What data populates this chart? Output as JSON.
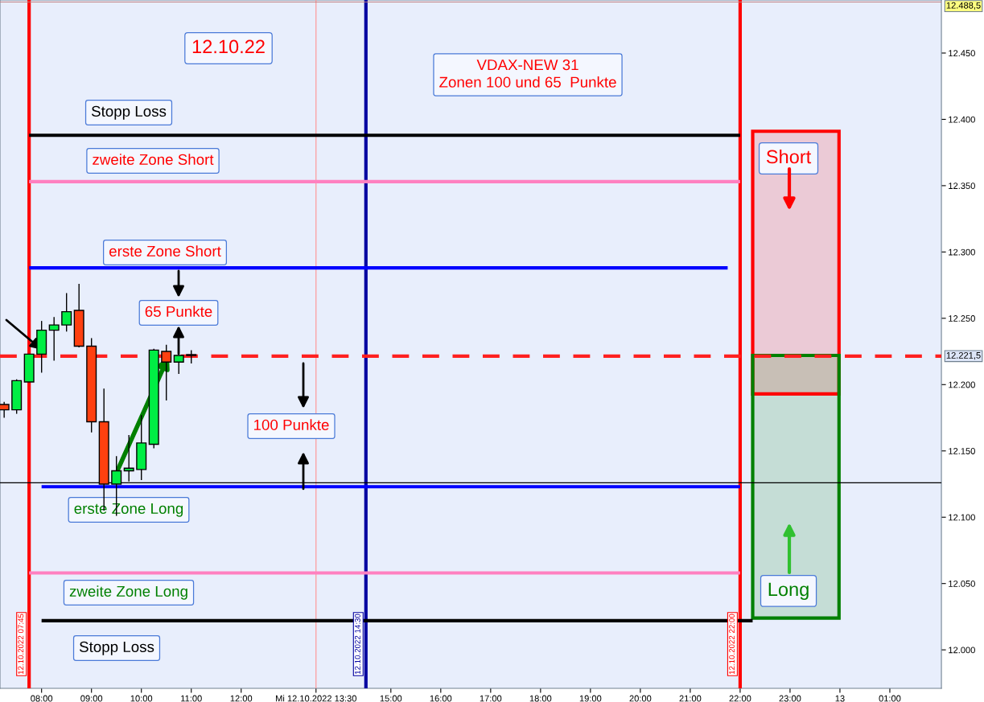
{
  "chart_data": {
    "type": "candlestick",
    "x": [
      "2022-10-12T07:15",
      "2022-10-12T07:30",
      "2022-10-12T07:45",
      "2022-10-12T08:00",
      "2022-10-12T08:15",
      "2022-10-12T08:30",
      "2022-10-12T08:45",
      "2022-10-12T09:00",
      "2022-10-12T09:15",
      "2022-10-12T09:30",
      "2022-10-12T09:45",
      "2022-10-12T10:00",
      "2022-10-12T10:15",
      "2022-10-12T10:30",
      "2022-10-12T10:45",
      "2022-10-12T11:00"
    ],
    "ohlc": [
      [
        12185,
        12187,
        12175,
        12181
      ],
      [
        12181,
        12204,
        12178,
        12203
      ],
      [
        12202,
        12223,
        12202,
        12223
      ],
      [
        12223,
        12248,
        12209,
        12241
      ],
      [
        12241,
        12251,
        12218,
        12245
      ],
      [
        12245,
        12269,
        12240,
        12255
      ],
      [
        12256,
        12276,
        12228,
        12229
      ],
      [
        12229,
        12235,
        12164,
        12172
      ],
      [
        12172,
        12197,
        12105,
        12125
      ],
      [
        12125,
        12146,
        12101,
        12135
      ],
      [
        12135,
        12162,
        12127,
        12137
      ],
      [
        12136,
        12177,
        12128,
        12156
      ],
      [
        12155,
        12227,
        12152,
        12226
      ],
      [
        12225,
        12230,
        12188,
        12217
      ],
      [
        12217,
        12222,
        12208,
        12222
      ],
      [
        12222,
        12226,
        12216,
        12222
      ]
    ],
    "colors": [
      "#ff4010",
      "#00ee44",
      "#00ee44",
      "#00ee44",
      "#00ee44",
      "#00ee44",
      "#ff4010",
      "#ff4010",
      "#ff4010",
      "#00ee44",
      "#00ee44",
      "#00ee44",
      "#00ee44",
      "#ff4010",
      "#00ee44",
      "#00ee44"
    ],
    "series": [
      {
        "type": "line",
        "color": "#000000",
        "x": [
          "2022-10-12T07:45",
          "2022-10-12T22:00"
        ],
        "values": [
          12388,
          12388
        ]
      },
      {
        "type": "line",
        "color": "#ff80c0",
        "x": [
          "2022-10-12T07:45",
          "2022-10-12T22:00"
        ],
        "values": [
          12353,
          12353
        ]
      },
      {
        "type": "line",
        "color": "#0000ff",
        "x": [
          "2022-10-12T07:45",
          "2022-10-12T21:45"
        ],
        "values": [
          12288,
          12288
        ]
      },
      {
        "type": "line",
        "color": "#0000ff",
        "x": [
          "2022-10-12T08:00",
          "2022-10-12T22:00"
        ],
        "values": [
          12123,
          12123
        ]
      },
      {
        "type": "line",
        "color": "#ff80c0",
        "x": [
          "2022-10-12T07:45",
          "2022-10-12T22:00"
        ],
        "values": [
          12058,
          12058
        ]
      },
      {
        "type": "line",
        "color": "#000000",
        "x": [
          "2022-10-12T08:00",
          "2022-10-12T22:15"
        ],
        "values": [
          12022,
          12022
        ]
      },
      {
        "type": "bar",
        "color": "#ff0000",
        "x": [
          "2022-10-12T23:07"
        ],
        "base": [
          12193
        ],
        "values": [
          198
        ]
      },
      {
        "type": "bar",
        "color": "#008000",
        "x": [
          "2022-10-12T23:07"
        ],
        "base": [
          12024
        ],
        "values": [
          198
        ]
      }
    ],
    "ref_lines": [
      {
        "axis": "x",
        "value": "2022-10-12T07:45",
        "label": "12.10.2022 07:45",
        "color": "#ff0000"
      },
      {
        "axis": "x",
        "value": "2022-10-12T13:30",
        "color": "#ff9090"
      },
      {
        "axis": "x",
        "value": "2022-10-12T14:30",
        "label": "12.10.2022 14:30",
        "color": "#0000a0"
      },
      {
        "axis": "x",
        "value": "2022-10-12T22:00",
        "label": "12.10.2022 22:00",
        "color": "#ff0000"
      },
      {
        "axis": "y",
        "value": 12126,
        "color": "#000000"
      },
      {
        "axis": "y",
        "value": 12488.5,
        "label": "12.488,5",
        "color": "#c08080"
      },
      {
        "axis": "y",
        "value": 12221.5,
        "label": "12.221,5",
        "color": "#ff2020",
        "line_style": "dashed"
      }
    ],
    "annotations": [
      "12.10.22",
      "VDAX-NEW 31\nZonen 100 und 65  Punkte",
      "Stopp Loss",
      "zweite Zone Short",
      "erste Zone Short",
      "65 Punkte",
      "100 Punkte",
      "erste Zone Long",
      "zweite Zone Long",
      "Stopp Loss",
      "Short",
      "Long"
    ],
    "xlim": [
      "2022-10-12T07:10",
      "2022-10-13T02:02"
    ],
    "xticks": [
      {
        "value": "2022-10-12T08:00",
        "label": "08:00"
      },
      {
        "value": "2022-10-12T09:00",
        "label": "09:00"
      },
      {
        "value": "2022-10-12T10:00",
        "label": "10:00"
      },
      {
        "value": "2022-10-12T11:00",
        "label": "11:00"
      },
      {
        "value": "2022-10-12T12:00",
        "label": "12:00"
      },
      {
        "value": "2022-10-12T13:30",
        "label": "Mi 12.10.2022 13:30"
      },
      {
        "value": "2022-10-12T15:00",
        "label": "15:00"
      },
      {
        "value": "2022-10-12T16:00",
        "label": "16:00"
      },
      {
        "value": "2022-10-12T17:00",
        "label": "17:00"
      },
      {
        "value": "2022-10-12T18:00",
        "label": "18:00"
      },
      {
        "value": "2022-10-12T19:00",
        "label": "19:00"
      },
      {
        "value": "2022-10-12T20:00",
        "label": "20:00"
      },
      {
        "value": "2022-10-12T21:00",
        "label": "21:00"
      },
      {
        "value": "2022-10-12T22:00",
        "label": "22:00"
      },
      {
        "value": "2022-10-12T23:00",
        "label": "23:00"
      },
      {
        "value": "2022-10-13T00:00",
        "label": "13"
      },
      {
        "value": "2022-10-13T01:00",
        "label": "01:00"
      }
    ],
    "ylim": [
      11971,
      12490
    ],
    "yticks": [
      {
        "value": 12000,
        "label": "12.000"
      },
      {
        "value": 12050,
        "label": "12.050"
      },
      {
        "value": 12100,
        "label": "12.100"
      },
      {
        "value": 12150,
        "label": "12.150"
      },
      {
        "value": 12200,
        "label": "12.200"
      },
      {
        "value": 12250,
        "label": "12.250"
      },
      {
        "value": 12300,
        "label": "12.300"
      },
      {
        "value": 12350,
        "label": "12.350"
      },
      {
        "value": 12400,
        "label": "12.400"
      },
      {
        "value": 12450,
        "label": "12.450"
      }
    ]
  }
}
